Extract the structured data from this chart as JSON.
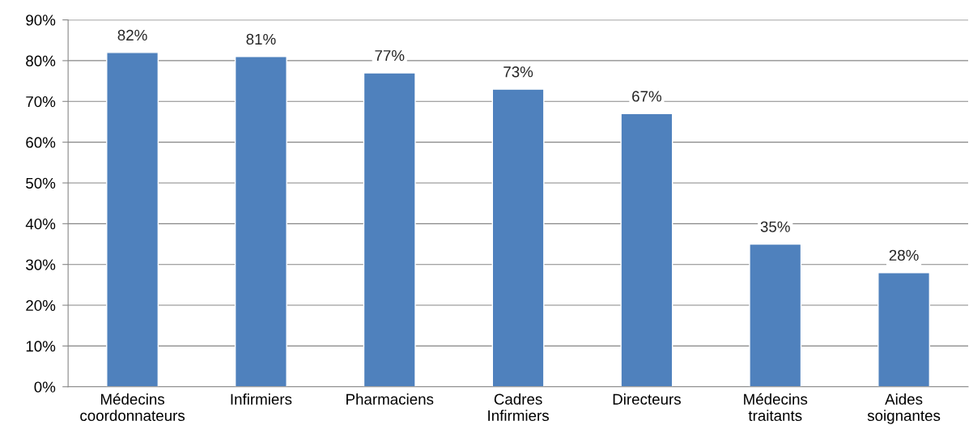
{
  "chart_data": {
    "type": "bar",
    "categories": [
      "Médecins\ncoordonnateurs",
      "Infirmiers",
      "Pharmaciens",
      "Cadres\nInfirmiers",
      "Directeurs",
      "Médecins\ntraitants",
      "Aides\nsoignantes"
    ],
    "values": [
      82,
      81,
      77,
      73,
      67,
      35,
      28
    ],
    "value_labels": [
      "82%",
      "81%",
      "77%",
      "73%",
      "67%",
      "35%",
      "28%"
    ],
    "color": "#4f81bd",
    "ylim": [
      0,
      90
    ],
    "yticks": [
      {
        "value": 0,
        "label": "0%"
      },
      {
        "value": 10,
        "label": "10%"
      },
      {
        "value": 20,
        "label": "20%"
      },
      {
        "value": 30,
        "label": "30%"
      },
      {
        "value": 40,
        "label": "40%"
      },
      {
        "value": 50,
        "label": "50%"
      },
      {
        "value": 60,
        "label": "60%"
      },
      {
        "value": 70,
        "label": "70%"
      },
      {
        "value": 80,
        "label": "80%"
      },
      {
        "value": 90,
        "label": "90%"
      }
    ],
    "grid": "y"
  }
}
